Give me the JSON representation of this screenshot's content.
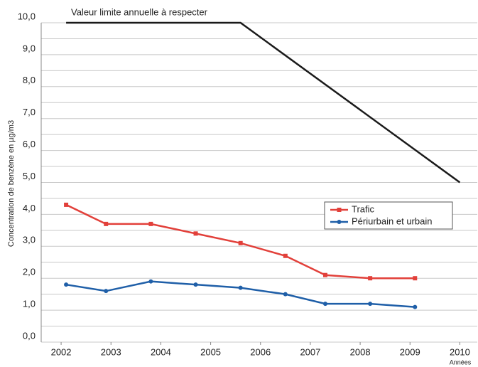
{
  "chart_data": {
    "type": "line",
    "annotation": "Valeur limite annuelle à respecter",
    "y_label": "Concentration de benzène en µg/m3",
    "x_label": "Années",
    "xlim": [
      2001.6,
      2010.35
    ],
    "xticks": [
      2002,
      2003,
      2004,
      2005,
      2006,
      2007,
      2008,
      2009,
      2010
    ],
    "ylim": [
      0,
      10
    ],
    "yticks": [
      {
        "value": 0,
        "label": "0,0"
      },
      {
        "value": 1,
        "label": "1,0"
      },
      {
        "value": 2,
        "label": "2,0"
      },
      {
        "value": 3,
        "label": "3,0"
      },
      {
        "value": 4,
        "label": "4,0"
      },
      {
        "value": 5,
        "label": "5,0"
      },
      {
        "value": 6,
        "label": "6,0"
      },
      {
        "value": 7,
        "label": "7,0"
      },
      {
        "value": 8,
        "label": "8,0"
      },
      {
        "value": 9,
        "label": "9,0"
      },
      {
        "value": 10,
        "label": "10,0"
      }
    ],
    "yminorticks": [
      0.5,
      1.5,
      2.5,
      3.5,
      4.5,
      5.5,
      6.5,
      7.5,
      8.5,
      9.5
    ],
    "grid": true,
    "limit": {
      "color": "#1a1a1a",
      "x": [
        2002.1,
        2005.6,
        2010
      ],
      "values": [
        10,
        10,
        5
      ]
    },
    "series": [
      {
        "name": "Trafic",
        "color": "#e2403a",
        "marker": "square",
        "x": [
          2002.1,
          2002.9,
          2003.8,
          2004.7,
          2005.6,
          2006.5,
          2007.3,
          2008.2,
          2009.1
        ],
        "values": [
          4.3,
          3.7,
          3.7,
          3.4,
          3.1,
          2.7,
          2.1,
          2.0,
          2.0
        ]
      },
      {
        "name": "Périurbain et urbain",
        "color": "#1f5fa8",
        "marker": "circle",
        "x": [
          2002.1,
          2002.9,
          2003.8,
          2004.7,
          2005.6,
          2006.5,
          2007.3,
          2008.2,
          2009.1
        ],
        "values": [
          1.8,
          1.6,
          1.9,
          1.8,
          1.7,
          1.5,
          1.2,
          1.2,
          1.1
        ]
      }
    ]
  }
}
